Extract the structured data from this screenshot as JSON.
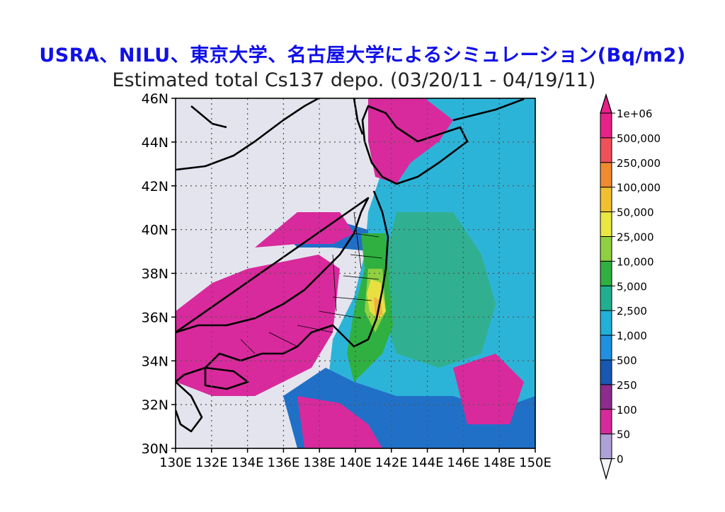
{
  "header": {
    "text": "USRA、NILU、東京大学、名古屋大学によるシミュレーション(Bq/m2)"
  },
  "map": {
    "title": "Estimated total Cs137 depo. (03/20/11 - 04/19/11)",
    "lat_labels": [
      "30N",
      "32N",
      "34N",
      "36N",
      "38N",
      "40N",
      "42N",
      "44N",
      "46N"
    ],
    "lon_labels": [
      "130E",
      "132E",
      "134E",
      "136E",
      "138E",
      "140E",
      "142E",
      "144E",
      "146E",
      "148E",
      "150E"
    ],
    "lat_range": [
      30,
      46
    ],
    "lon_range": [
      130,
      150
    ],
    "grid": "dotted",
    "legend": {
      "placement": "right",
      "levels": [
        {
          "label": "1e+06",
          "color": "#e8208a"
        },
        {
          "label": "500,000",
          "color": "#f0505a"
        },
        {
          "label": "250,000",
          "color": "#f08a30"
        },
        {
          "label": "100,000",
          "color": "#f0c030"
        },
        {
          "label": "50,000",
          "color": "#e8e840"
        },
        {
          "label": "25,000",
          "color": "#90d040"
        },
        {
          "label": "10,000",
          "color": "#30b040"
        },
        {
          "label": "5,000",
          "color": "#20b090"
        },
        {
          "label": "2,500",
          "color": "#20b0d8"
        },
        {
          "label": "1,000",
          "color": "#2090e0"
        },
        {
          "label": "500",
          "color": "#1858b0"
        },
        {
          "label": "250",
          "color": "#8c2c8c"
        },
        {
          "label": "100",
          "color": "#d82a9c"
        },
        {
          "label": "50",
          "color": "#b0a0d8"
        },
        {
          "label": "0",
          "color": "#e4e4ee"
        }
      ]
    }
  }
}
